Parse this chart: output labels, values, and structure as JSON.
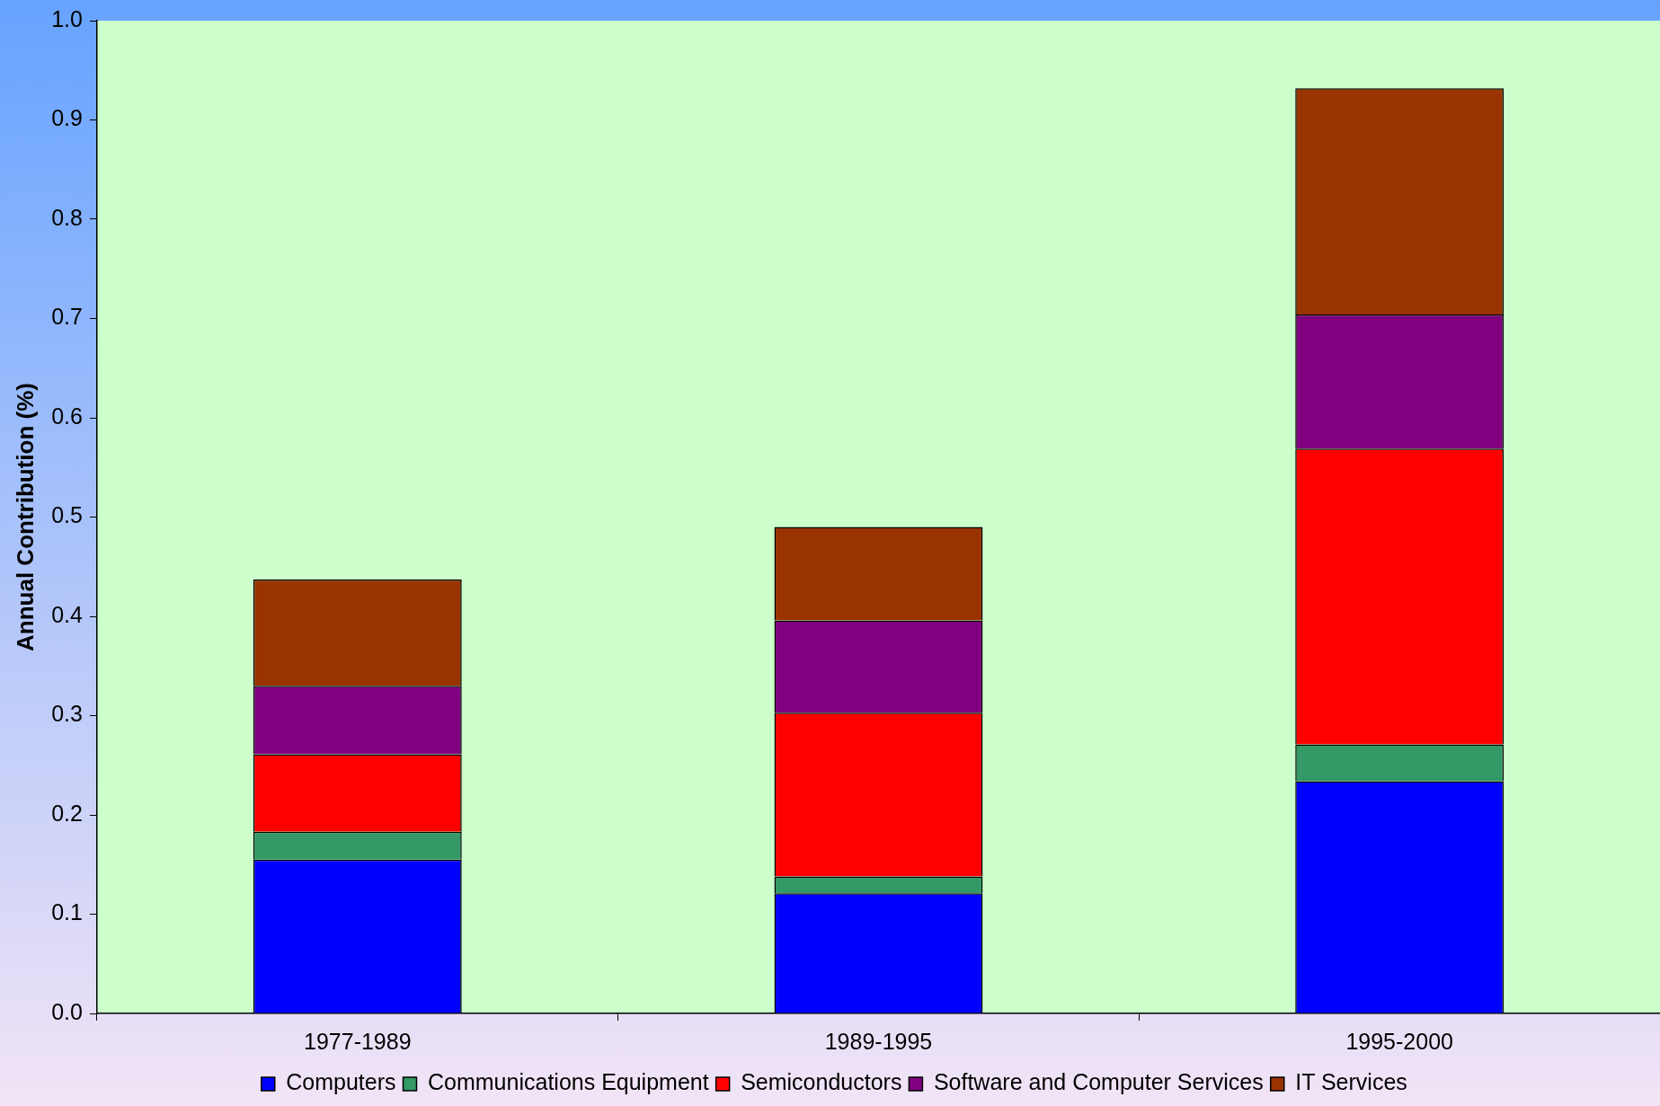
{
  "chart_data": {
    "type": "bar",
    "stacked": true,
    "ylabel": "Annual Contribution (%)",
    "categories": [
      "1977-1989",
      "1989-1995",
      "1995-2000"
    ],
    "series": [
      {
        "name": "Computers",
        "color": "#0000ff",
        "values": [
          0.155,
          0.121,
          0.234
        ]
      },
      {
        "name": "Communications Equipment",
        "color": "#339966",
        "values": [
          0.028,
          0.017,
          0.037
        ]
      },
      {
        "name": "Semiconductors",
        "color": "#ff0000",
        "values": [
          0.078,
          0.165,
          0.298
        ]
      },
      {
        "name": "Software and Computer Services",
        "color": "#800080",
        "values": [
          0.069,
          0.093,
          0.135
        ]
      },
      {
        "name": "IT Services",
        "color": "#993300",
        "values": [
          0.107,
          0.094,
          0.228
        ]
      }
    ],
    "ylim": [
      0,
      1.0
    ],
    "yticks": [
      {
        "value": 0,
        "label": "0.0"
      },
      {
        "value": 0.1,
        "label": "0.1"
      },
      {
        "value": 0.2,
        "label": "0.2"
      },
      {
        "value": 0.3,
        "label": "0.3"
      },
      {
        "value": 0.4,
        "label": "0.4"
      },
      {
        "value": 0.5,
        "label": "0.5"
      },
      {
        "value": 0.6,
        "label": "0.6"
      },
      {
        "value": 0.7,
        "label": "0.7"
      },
      {
        "value": 0.8,
        "label": "0.8"
      },
      {
        "value": 0.9,
        "label": "0.9"
      },
      {
        "value": 1.0,
        "label": "1.0"
      }
    ],
    "grid": false,
    "legend": "bottom"
  }
}
